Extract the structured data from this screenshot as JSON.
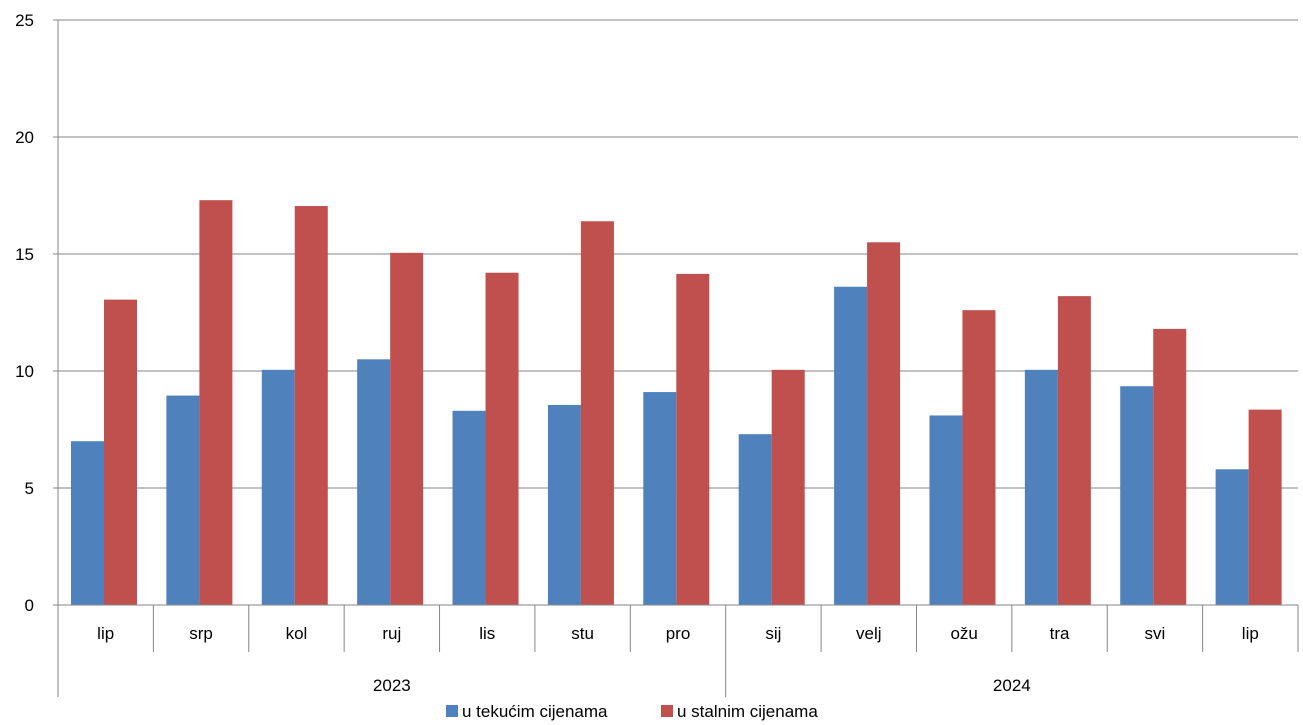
{
  "chart_data": {
    "type": "bar",
    "title": "",
    "xlabel": "",
    "ylabel": "",
    "ylim": [
      0,
      25
    ],
    "yticks": [
      0,
      5,
      10,
      15,
      20,
      25
    ],
    "grid": true,
    "legend_position": "bottom",
    "categories": [
      "lip",
      "srp",
      "kol",
      "ruj",
      "lis",
      "stu",
      "pro",
      "sij",
      "velj",
      "ožu",
      "tra",
      "svi",
      "lip"
    ],
    "groups": [
      {
        "label": "2023",
        "span": 7
      },
      {
        "label": "2024",
        "span": 6
      }
    ],
    "series": [
      {
        "name": "u tekućim cijenama",
        "color": "#4f81bd",
        "values": [
          7.0,
          8.95,
          10.05,
          10.5,
          8.3,
          8.55,
          9.1,
          7.3,
          13.6,
          8.1,
          10.05,
          9.35,
          5.8
        ]
      },
      {
        "name": "u stalnim cijenama",
        "color": "#c0504d",
        "values": [
          13.05,
          17.3,
          17.05,
          15.05,
          14.2,
          16.4,
          14.15,
          10.05,
          15.5,
          12.6,
          13.2,
          11.8,
          8.35
        ]
      }
    ]
  }
}
